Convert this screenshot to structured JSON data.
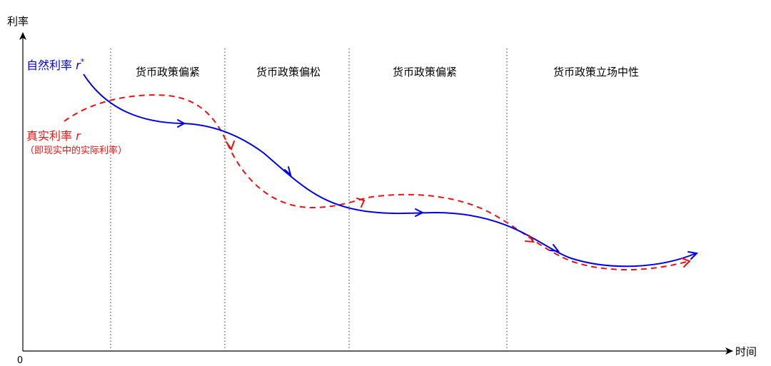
{
  "axes": {
    "y_label": "利率",
    "x_label": "时间",
    "origin_label": "0"
  },
  "periods": [
    {
      "label": "货币政策偏紧"
    },
    {
      "label": "货币政策偏松"
    },
    {
      "label": "货币政策偏紧"
    },
    {
      "label": "货币政策立场中性"
    }
  ],
  "natural_rate": {
    "label_prefix": "自然利率 ",
    "label_symbol": "r",
    "label_superscript": "*",
    "color": "#0000ee"
  },
  "real_rate": {
    "label_prefix": "真实利率 ",
    "label_symbol": "r",
    "sub_label": "（即现实中的实际利率）",
    "color": "#ee1111"
  }
}
